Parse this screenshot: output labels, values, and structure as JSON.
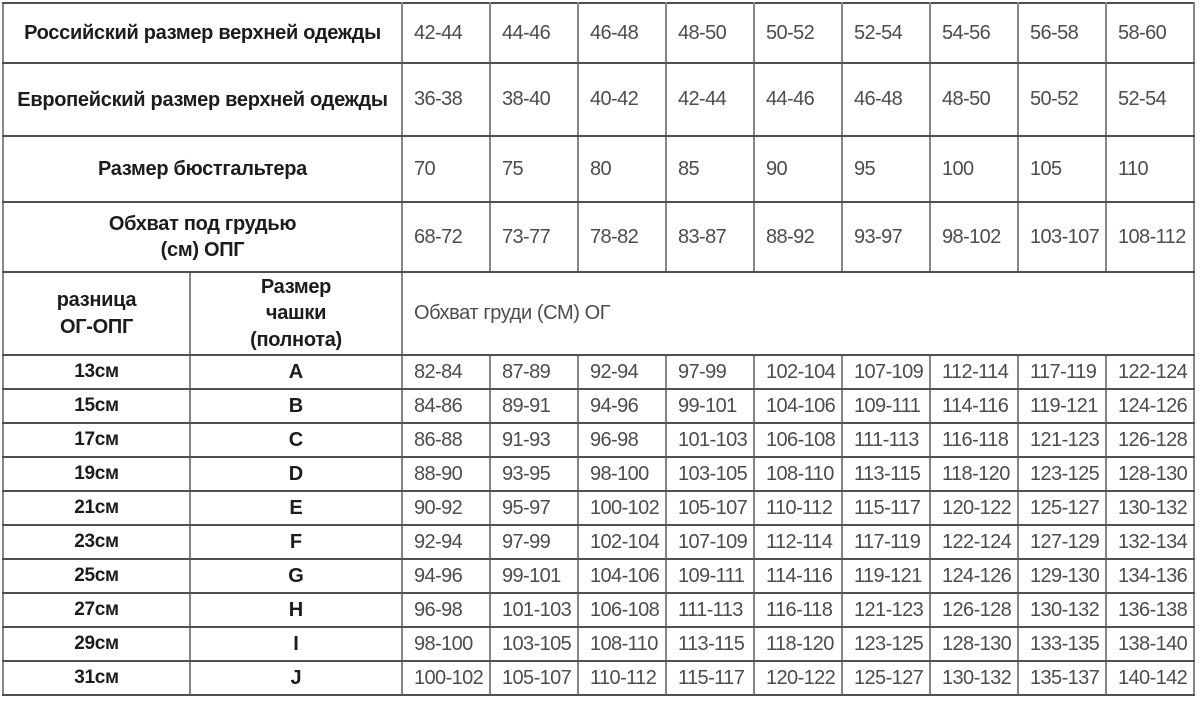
{
  "table": {
    "top_rows": [
      {
        "label": "Российский размер верхней одежды",
        "values": [
          "42-44",
          "44-46",
          "46-48",
          "48-50",
          "50-52",
          "52-54",
          "54-56",
          "56-58",
          "58-60"
        ]
      },
      {
        "label": "Европейский размер верхней одежды",
        "values": [
          "36-38",
          "38-40",
          "40-42",
          "42-44",
          "44-46",
          "46-48",
          "48-50",
          "50-52",
          "52-54"
        ]
      },
      {
        "label": "Размер бюстгальтера",
        "values": [
          "70",
          "75",
          "80",
          "85",
          "90",
          "95",
          "100",
          "105",
          "110"
        ]
      },
      {
        "label": "Обхват под грудью\n(см) ОПГ",
        "values": [
          "68-72",
          "73-77",
          "78-82",
          "83-87",
          "88-92",
          "93-97",
          "98-102",
          "103-107",
          "108-112"
        ]
      }
    ],
    "mid_header": {
      "difference_label": "разница\nОГ-ОПГ",
      "cup_size_label": "Размер\nчашки\n(полнота)",
      "bust_label": "Обхват груди (СМ) ОГ"
    },
    "cup_rows": [
      {
        "difference": "13см",
        "cup": "A",
        "values": [
          "82-84",
          "87-89",
          "92-94",
          "97-99",
          "102-104",
          "107-109",
          "112-114",
          "117-119",
          "122-124"
        ]
      },
      {
        "difference": "15см",
        "cup": "B",
        "values": [
          "84-86",
          "89-91",
          "94-96",
          "99-101",
          "104-106",
          "109-111",
          "114-116",
          "119-121",
          "124-126"
        ]
      },
      {
        "difference": "17см",
        "cup": "C",
        "values": [
          "86-88",
          "91-93",
          "96-98",
          "101-103",
          "106-108",
          "111-113",
          "116-118",
          "121-123",
          "126-128"
        ]
      },
      {
        "difference": "19см",
        "cup": "D",
        "values": [
          "88-90",
          "93-95",
          "98-100",
          "103-105",
          "108-110",
          "113-115",
          "118-120",
          "123-125",
          "128-130"
        ]
      },
      {
        "difference": "21см",
        "cup": "E",
        "values": [
          "90-92",
          "95-97",
          "100-102",
          "105-107",
          "110-112",
          "115-117",
          "120-122",
          "125-127",
          "130-132"
        ]
      },
      {
        "difference": "23см",
        "cup": "F",
        "values": [
          "92-94",
          "97-99",
          "102-104",
          "107-109",
          "112-114",
          "117-119",
          "122-124",
          "127-129",
          "132-134"
        ]
      },
      {
        "difference": "25см",
        "cup": "G",
        "values": [
          "94-96",
          "99-101",
          "104-106",
          "109-111",
          "114-116",
          "119-121",
          "124-126",
          "129-130",
          "134-136"
        ]
      },
      {
        "difference": "27см",
        "cup": "H",
        "values": [
          "96-98",
          "101-103",
          "106-108",
          "111-113",
          "116-118",
          "121-123",
          "126-128",
          "130-132",
          "136-138"
        ]
      },
      {
        "difference": "29см",
        "cup": "I",
        "values": [
          "98-100",
          "103-105",
          "108-110",
          "113-115",
          "118-120",
          "123-125",
          "128-130",
          "133-135",
          "138-140"
        ]
      },
      {
        "difference": "31см",
        "cup": "J",
        "values": [
          "100-102",
          "105-107",
          "110-112",
          "115-117",
          "120-122",
          "125-127",
          "130-132",
          "135-137",
          "140-142"
        ]
      }
    ]
  },
  "colors": {
    "background": "#ffffff",
    "border_vertical": "#878787",
    "border_horizontal": "#4f4f4f",
    "label_text": "#1c1c1c",
    "value_text": "#4c4c4c"
  }
}
